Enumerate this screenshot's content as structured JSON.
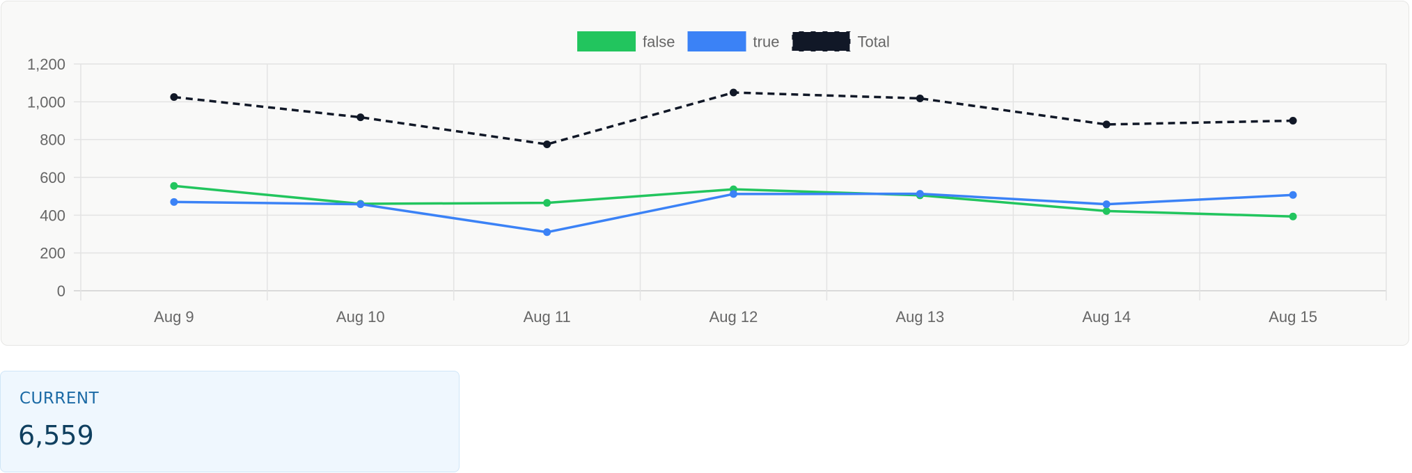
{
  "chart_data": {
    "type": "line",
    "categories": [
      "Aug 9",
      "Aug 10",
      "Aug 11",
      "Aug 12",
      "Aug 13",
      "Aug 14",
      "Aug 15"
    ],
    "series": [
      {
        "name": "false",
        "color": "#22c55e",
        "style": "solid",
        "values": [
          555,
          460,
          465,
          537,
          505,
          422,
          393
        ]
      },
      {
        "name": "true",
        "color": "#3b82f6",
        "style": "solid",
        "values": [
          470,
          458,
          310,
          512,
          513,
          458,
          507
        ]
      },
      {
        "name": "Total",
        "color": "#111827",
        "style": "dashed",
        "values": [
          1025,
          918,
          775,
          1049,
          1018,
          880,
          900
        ]
      }
    ],
    "ylim": [
      0,
      1200
    ],
    "yticks": [
      "0",
      "200",
      "400",
      "600",
      "800",
      "1,000",
      "1,200"
    ],
    "grid": true,
    "legend_position": "top-center"
  },
  "stat": {
    "label": "CURRENT",
    "value": "6,559"
  }
}
